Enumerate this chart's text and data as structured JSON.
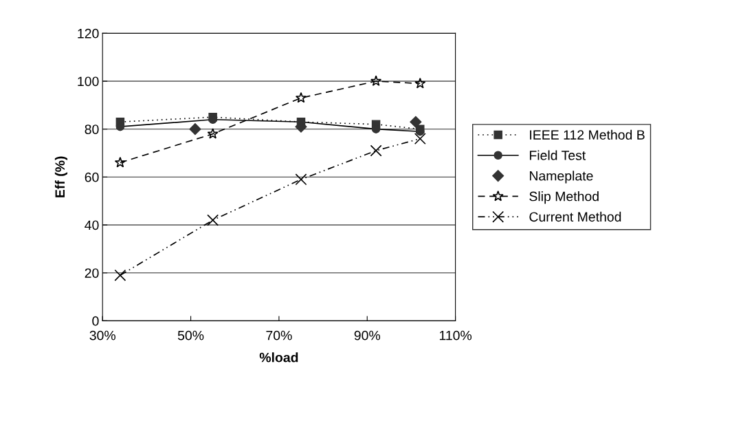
{
  "chart_data": {
    "type": "line",
    "xlabel": "%load",
    "ylabel": "Eff (%)",
    "xlim": [
      30,
      110
    ],
    "xticks": [
      {
        "value": 30,
        "label": "30%"
      },
      {
        "value": 50,
        "label": "50%"
      },
      {
        "value": 70,
        "label": "70%"
      },
      {
        "value": 90,
        "label": "90%"
      },
      {
        "value": 110,
        "label": "110%"
      }
    ],
    "ylim": [
      0,
      120
    ],
    "yticks": [
      0,
      20,
      40,
      60,
      80,
      100,
      120
    ],
    "grid": "y",
    "legend": "right",
    "series": [
      {
        "name": "IEEE 112 Method B",
        "color": "#333333",
        "marker": "square",
        "line_style": "dotted",
        "x": [
          34,
          55,
          75,
          92,
          102
        ],
        "values": [
          83,
          85,
          83,
          82,
          80
        ]
      },
      {
        "name": "Field Test",
        "color": "#333333",
        "marker": "circle",
        "line_style": "solid",
        "x": [
          34,
          55,
          75,
          92,
          102
        ],
        "values": [
          81,
          84,
          83,
          80,
          79
        ]
      },
      {
        "name": "Nameplate",
        "color": "#333333",
        "type": "scatter",
        "marker": "diamond",
        "x": [
          51,
          75,
          101
        ],
        "values": [
          80,
          81,
          83
        ]
      },
      {
        "name": "Slip Method",
        "color": "#000000",
        "marker": "star",
        "line_style": "dashed",
        "x": [
          34,
          55,
          75,
          92,
          102
        ],
        "values": [
          66,
          78,
          93,
          100,
          99
        ]
      },
      {
        "name": "Current Method",
        "color": "#000000",
        "marker": "cross",
        "line_style": "dashdot",
        "x": [
          34,
          55,
          75,
          92,
          102
        ],
        "values": [
          19,
          42,
          59,
          71,
          76
        ]
      }
    ]
  }
}
